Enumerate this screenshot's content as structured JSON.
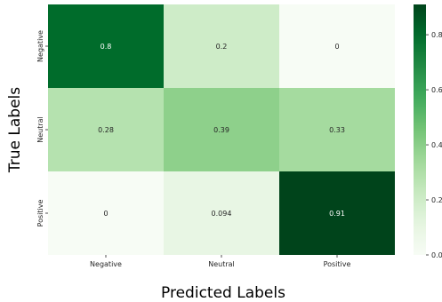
{
  "chart_data": {
    "type": "heatmap",
    "xlabel": "Predicted Labels",
    "ylabel": "True Labels",
    "x_categories": [
      "Negative",
      "Neutral",
      "Positive"
    ],
    "y_categories": [
      "Negative",
      "Neutral",
      "Positive"
    ],
    "values": [
      [
        0.8,
        0.2,
        0
      ],
      [
        0.28,
        0.39,
        0.33
      ],
      [
        0,
        0.094,
        0.91
      ]
    ],
    "value_labels": [
      [
        "0.8",
        "0.2",
        "0"
      ],
      [
        "0.28",
        "0.39",
        "0.33"
      ],
      [
        "0",
        "0.094",
        "0.91"
      ]
    ],
    "colormap": "Greens",
    "color_range": [
      0,
      0.91
    ],
    "colorbar_ticks": [
      0.0,
      0.2,
      0.4,
      0.6,
      0.8
    ],
    "colorbar_tick_labels": [
      "0.0",
      "0.2",
      "0.4",
      "0.6",
      "0.8"
    ],
    "grid": false
  }
}
